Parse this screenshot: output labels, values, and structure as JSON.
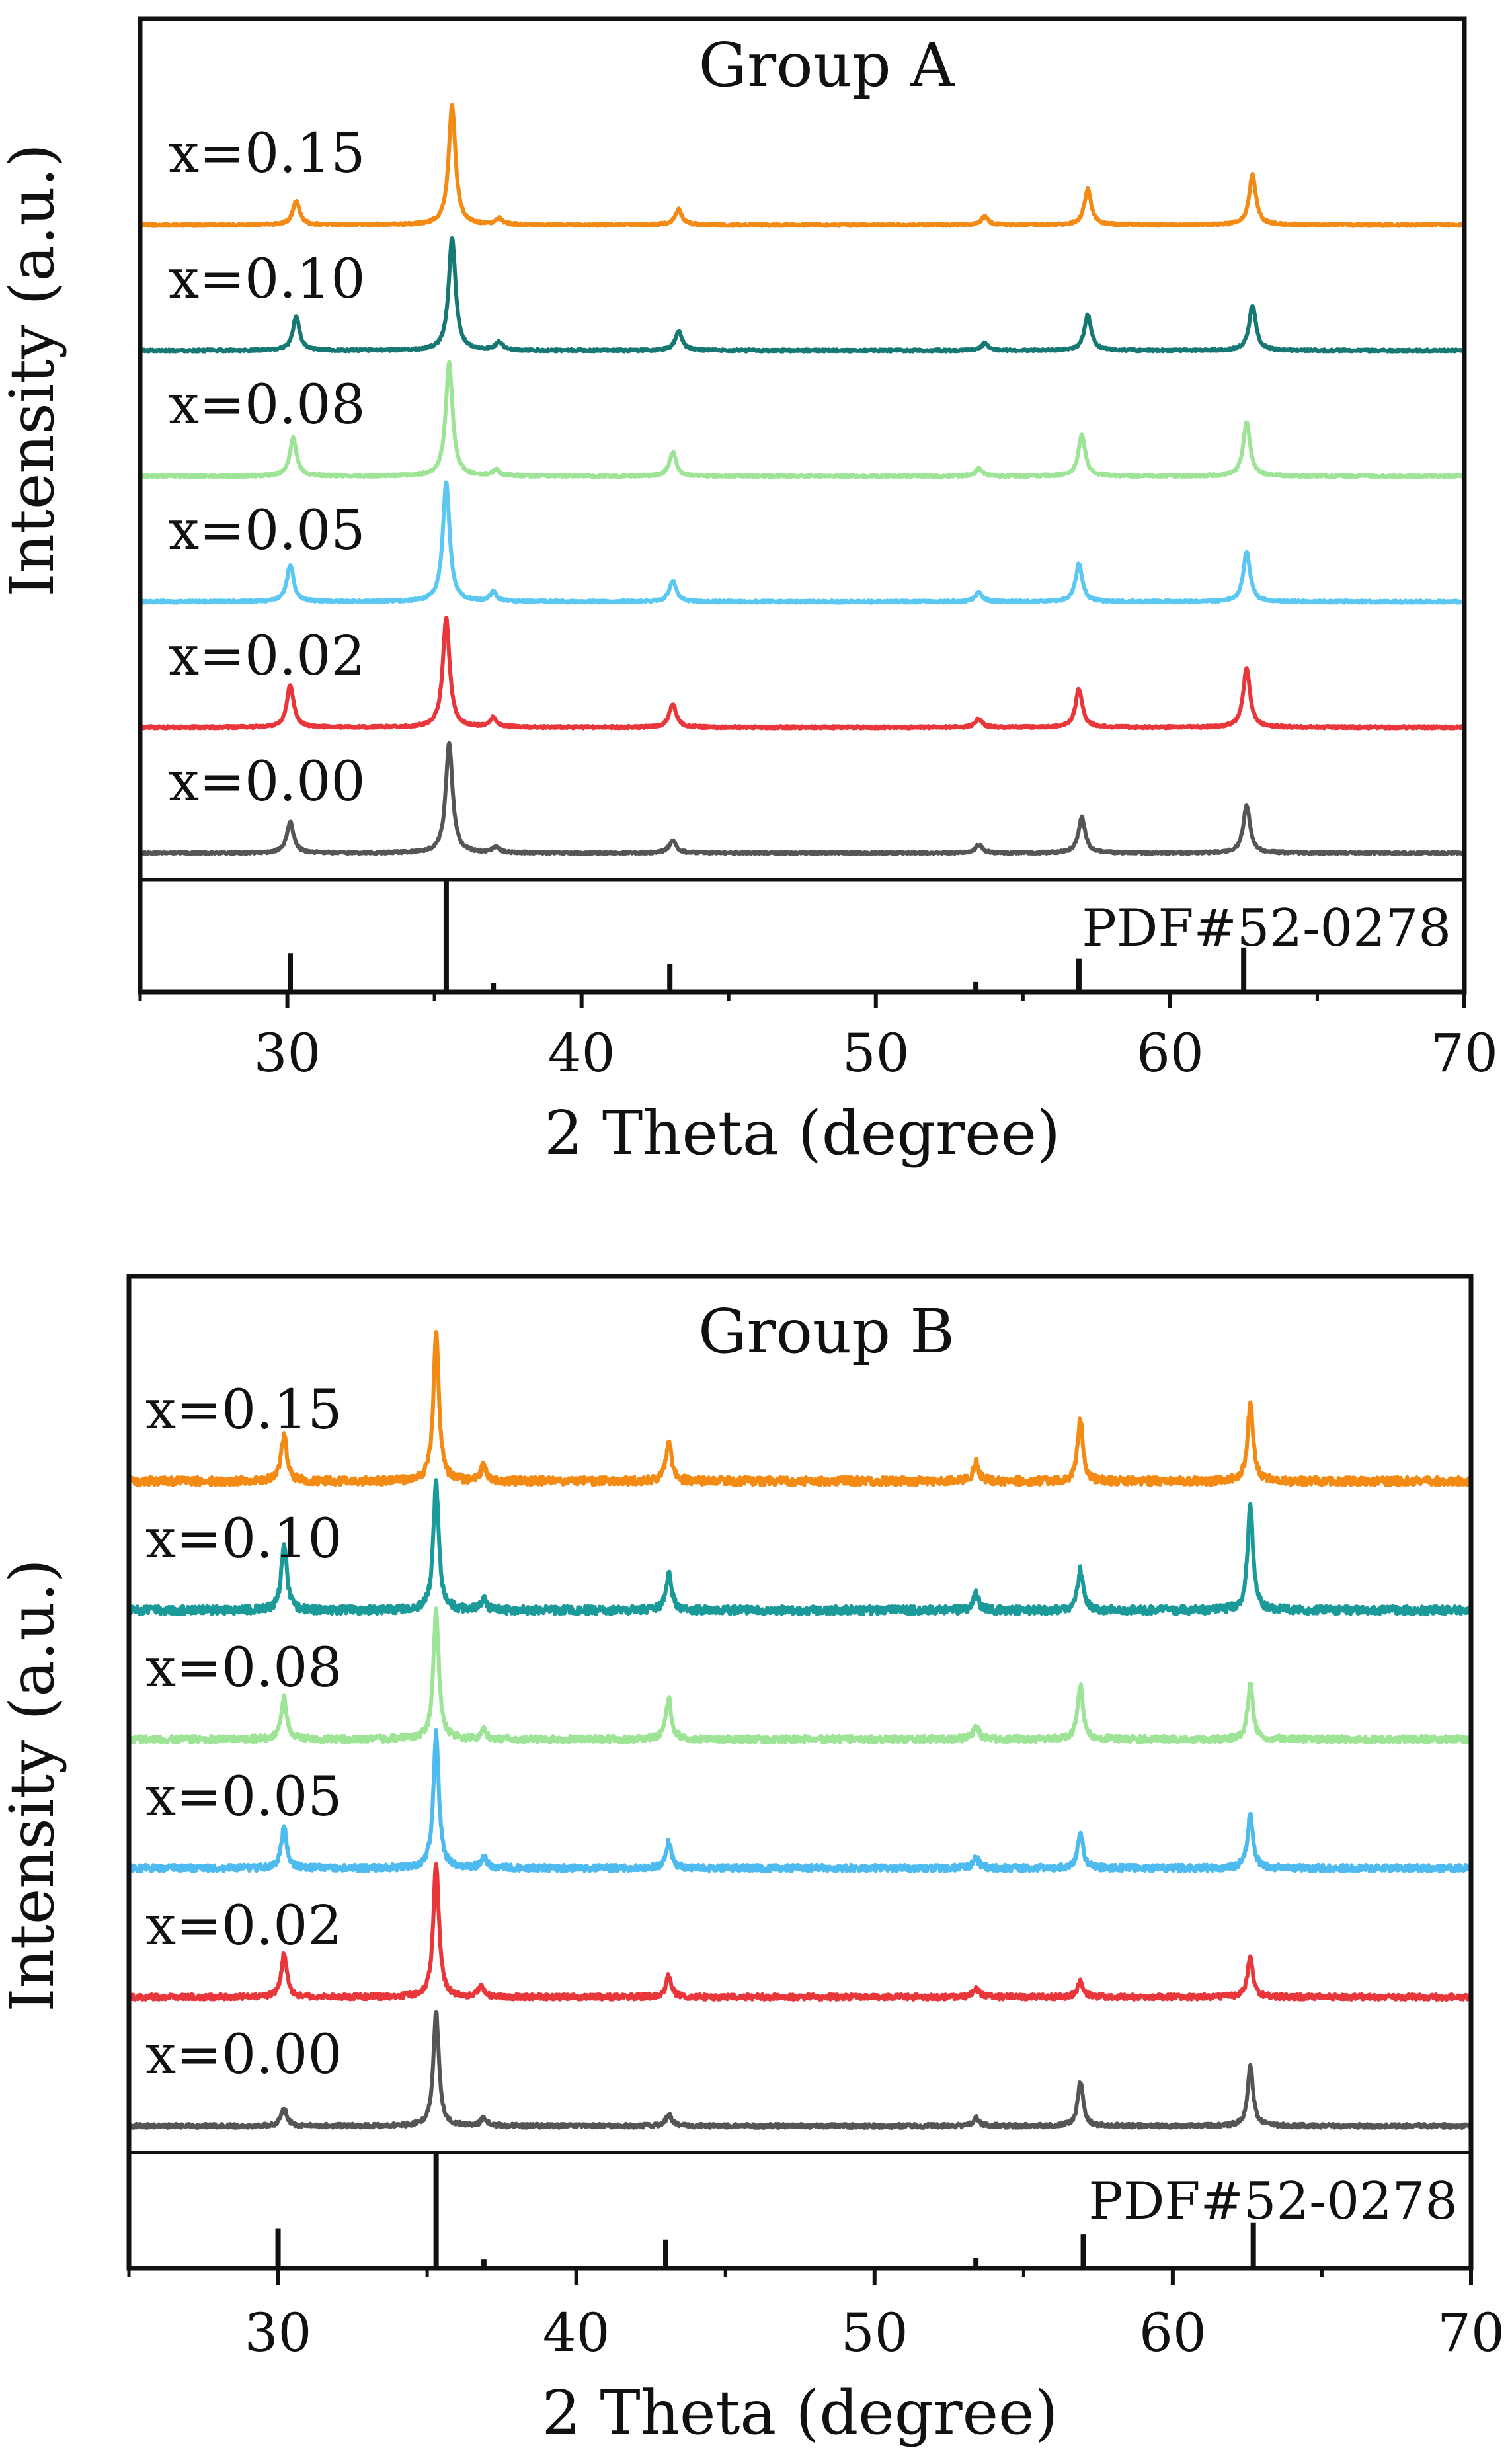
{
  "chart_data": [
    {
      "type": "line",
      "title": "Group A",
      "xlabel": "2 Theta (degree)",
      "ylabel": "Intensity (a.u.)",
      "xlim": [
        25,
        70
      ],
      "xticks": [
        30,
        40,
        50,
        60,
        70
      ],
      "grid": false,
      "reference": {
        "label": "PDF#52-0278",
        "peaks": [
          {
            "x": 30.1,
            "rel": 0.35
          },
          {
            "x": 35.4,
            "rel": 1.0
          },
          {
            "x": 37.0,
            "rel": 0.08
          },
          {
            "x": 43.0,
            "rel": 0.25
          },
          {
            "x": 53.4,
            "rel": 0.09
          },
          {
            "x": 56.9,
            "rel": 0.3
          },
          {
            "x": 62.5,
            "rel": 0.4
          }
        ]
      },
      "series": [
        {
          "name": "x=0.00",
          "color": "#555555",
          "noise": 0.01,
          "peaks": [
            [
              30.1,
              0.26
            ],
            [
              35.5,
              0.92
            ],
            [
              37.1,
              0.05
            ],
            [
              43.1,
              0.11
            ],
            [
              53.5,
              0.07
            ],
            [
              57.0,
              0.3
            ],
            [
              62.6,
              0.4
            ]
          ]
        },
        {
          "name": "x=0.02",
          "color": "#e8363b",
          "noise": 0.01,
          "peaks": [
            [
              30.1,
              0.36
            ],
            [
              35.4,
              0.92
            ],
            [
              37.0,
              0.08
            ],
            [
              43.1,
              0.2
            ],
            [
              53.5,
              0.07
            ],
            [
              56.9,
              0.32
            ],
            [
              62.6,
              0.5
            ]
          ]
        },
        {
          "name": "x=0.05",
          "color": "#5ac8f0",
          "noise": 0.01,
          "peaks": [
            [
              30.1,
              0.31
            ],
            [
              35.4,
              1.0
            ],
            [
              37.0,
              0.08
            ],
            [
              43.1,
              0.18
            ],
            [
              53.5,
              0.08
            ],
            [
              56.9,
              0.32
            ],
            [
              62.6,
              0.42
            ]
          ]
        },
        {
          "name": "x=0.08",
          "color": "#9ee497",
          "noise": 0.01,
          "peaks": [
            [
              30.2,
              0.32
            ],
            [
              35.5,
              0.95
            ],
            [
              37.1,
              0.05
            ],
            [
              43.1,
              0.2
            ],
            [
              53.5,
              0.06
            ],
            [
              57.0,
              0.35
            ],
            [
              62.6,
              0.45
            ]
          ]
        },
        {
          "name": "x=0.10",
          "color": "#167873",
          "noise": 0.01,
          "peaks": [
            [
              30.3,
              0.28
            ],
            [
              35.6,
              0.95
            ],
            [
              37.2,
              0.07
            ],
            [
              43.3,
              0.16
            ],
            [
              53.7,
              0.06
            ],
            [
              57.2,
              0.3
            ],
            [
              62.8,
              0.38
            ]
          ]
        },
        {
          "name": "x=0.15",
          "color": "#f28a14",
          "noise": 0.01,
          "peaks": [
            [
              30.3,
              0.2
            ],
            [
              35.6,
              1.0
            ],
            [
              37.2,
              0.05
            ],
            [
              43.3,
              0.13
            ],
            [
              53.7,
              0.07
            ],
            [
              57.2,
              0.3
            ],
            [
              62.8,
              0.42
            ]
          ]
        }
      ]
    },
    {
      "type": "line",
      "title": "Group B",
      "xlabel": "2 Theta (degree)",
      "ylabel": "Intensity (a.u.)",
      "xlim": [
        25,
        70
      ],
      "xticks": [
        30,
        40,
        50,
        60,
        70
      ],
      "grid": false,
      "reference": {
        "label": "PDF#52-0278",
        "peaks": [
          {
            "x": 30.0,
            "rel": 0.35
          },
          {
            "x": 35.3,
            "rel": 1.0
          },
          {
            "x": 36.9,
            "rel": 0.08
          },
          {
            "x": 43.0,
            "rel": 0.25
          },
          {
            "x": 53.4,
            "rel": 0.09
          },
          {
            "x": 57.0,
            "rel": 0.3
          },
          {
            "x": 62.7,
            "rel": 0.4
          }
        ]
      },
      "series": [
        {
          "name": "x=0.00",
          "color": "#555555",
          "noise": 0.015,
          "peaks": [
            [
              30.2,
              0.14
            ],
            [
              35.3,
              0.85
            ],
            [
              36.9,
              0.06
            ],
            [
              43.1,
              0.09
            ],
            [
              53.4,
              0.06
            ],
            [
              56.9,
              0.33
            ],
            [
              62.6,
              0.45
            ]
          ]
        },
        {
          "name": "x=0.02",
          "color": "#e8363b",
          "noise": 0.02,
          "peaks": [
            [
              30.2,
              0.32
            ],
            [
              35.3,
              1.0
            ],
            [
              36.8,
              0.08
            ],
            [
              43.1,
              0.16
            ],
            [
              53.4,
              0.07
            ],
            [
              56.9,
              0.12
            ],
            [
              62.6,
              0.3
            ]
          ]
        },
        {
          "name": "x=0.05",
          "color": "#4dbaf0",
          "noise": 0.025,
          "peaks": [
            [
              30.2,
              0.3
            ],
            [
              35.3,
              1.0
            ],
            [
              36.9,
              0.08
            ],
            [
              43.1,
              0.2
            ],
            [
              53.4,
              0.08
            ],
            [
              56.9,
              0.26
            ],
            [
              62.6,
              0.4
            ]
          ]
        },
        {
          "name": "x=0.08",
          "color": "#9ee497",
          "noise": 0.025,
          "peaks": [
            [
              30.2,
              0.3
            ],
            [
              35.3,
              0.95
            ],
            [
              36.9,
              0.07
            ],
            [
              43.1,
              0.3
            ],
            [
              53.4,
              0.1
            ],
            [
              56.9,
              0.4
            ],
            [
              62.6,
              0.4
            ]
          ]
        },
        {
          "name": "x=0.10",
          "color": "#1b9a9a",
          "noise": 0.03,
          "peaks": [
            [
              30.2,
              0.5
            ],
            [
              35.3,
              0.95
            ],
            [
              36.9,
              0.08
            ],
            [
              43.1,
              0.28
            ],
            [
              53.4,
              0.12
            ],
            [
              56.9,
              0.3
            ],
            [
              62.6,
              0.78
            ]
          ]
        },
        {
          "name": "x=0.15",
          "color": "#f28a14",
          "noise": 0.03,
          "peaks": [
            [
              30.2,
              0.35
            ],
            [
              35.3,
              1.1
            ],
            [
              36.9,
              0.12
            ],
            [
              43.1,
              0.3
            ],
            [
              53.4,
              0.15
            ],
            [
              56.9,
              0.45
            ],
            [
              62.6,
              0.58
            ]
          ]
        }
      ]
    }
  ]
}
